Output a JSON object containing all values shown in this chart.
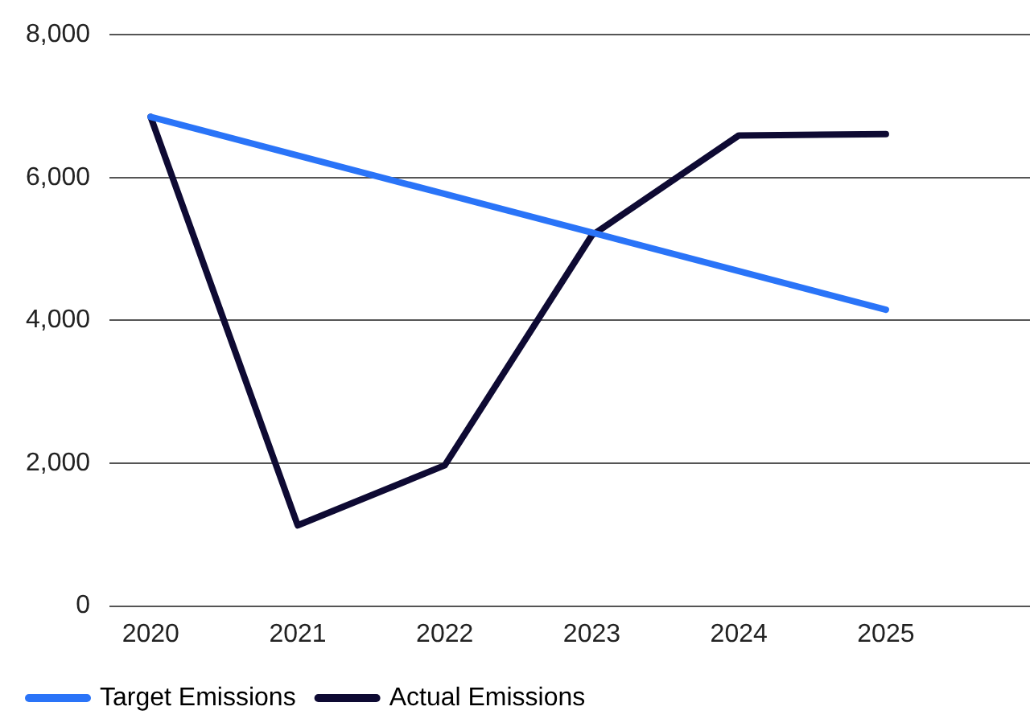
{
  "chart_data": {
    "type": "line",
    "x": [
      2020,
      2021,
      2022,
      2023,
      2024,
      2025
    ],
    "xlim": [
      2019.72,
      2025.98
    ],
    "xticks": [
      2020,
      2021,
      2022,
      2023,
      2024,
      2025
    ],
    "ylim": [
      0,
      8000
    ],
    "yticks": [
      {
        "value": 0,
        "label": "0"
      },
      {
        "value": 2000,
        "label": "2,000"
      },
      {
        "value": 4000,
        "label": "4,000"
      },
      {
        "value": 6000,
        "label": "6,000"
      },
      {
        "value": 8000,
        "label": "8,000"
      }
    ],
    "series": [
      {
        "name": "Target Emissions",
        "color": "#2a74f8",
        "values": [
          6850,
          6310,
          5770,
          5230,
          4690,
          4150
        ]
      },
      {
        "name": "Actual Emissions",
        "color": "#0e0a33",
        "values": [
          6850,
          1130,
          1970,
          5190,
          6590,
          6610
        ]
      }
    ],
    "grid": "y",
    "legend": "bottom left",
    "marker": "none",
    "line_style": "solid"
  }
}
